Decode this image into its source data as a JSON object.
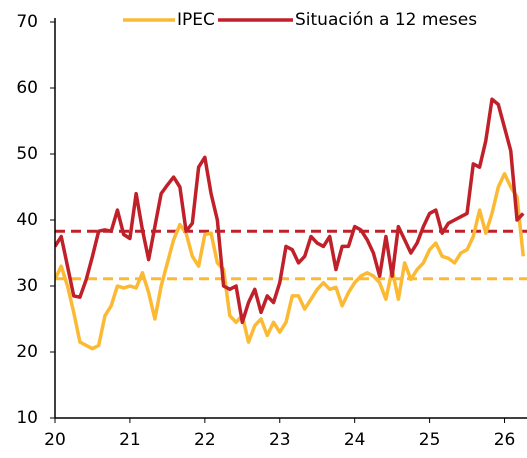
{
  "chart_data": {
    "type": "line",
    "x": [
      20,
      20.083,
      20.167,
      20.25,
      20.333,
      20.417,
      20.5,
      20.583,
      20.667,
      20.75,
      20.833,
      20.917,
      21,
      21.083,
      21.167,
      21.25,
      21.333,
      21.417,
      21.5,
      21.583,
      21.667,
      21.75,
      21.833,
      21.917,
      22,
      22.083,
      22.167,
      22.25,
      22.333,
      22.417,
      22.5,
      22.583,
      22.667,
      22.75,
      22.833,
      22.917,
      23,
      23.083,
      23.167,
      23.25,
      23.333,
      23.417,
      23.5,
      23.583,
      23.667,
      23.75,
      23.833,
      23.917,
      24,
      24.083,
      24.167,
      24.25,
      24.333,
      24.417,
      24.5,
      24.583,
      24.667,
      24.75,
      24.833,
      24.917,
      25,
      25.083,
      25.167,
      25.25,
      25.333,
      25.417,
      25.5,
      25.583,
      25.667,
      25.75,
      25.833,
      25.917,
      26,
      26.083,
      26.167,
      26.25
    ],
    "series": [
      {
        "name": "IPEC",
        "color": "#fbb934",
        "values": [
          31,
          33,
          30,
          26,
          21.5,
          21,
          20.5,
          21,
          25.5,
          27,
          30,
          29.7,
          30,
          29.7,
          32,
          29,
          25,
          30,
          33.5,
          37,
          39.3,
          38,
          34.5,
          33,
          37.8,
          38,
          33.5,
          32.5,
          25.5,
          24.5,
          25.5,
          21.5,
          24,
          25,
          22.5,
          24.5,
          23,
          24.5,
          28.5,
          28.5,
          26.5,
          28,
          29.5,
          30.5,
          29.5,
          29.8,
          27,
          29,
          30.5,
          31.5,
          32,
          31.5,
          30.5,
          28,
          32.5,
          28,
          33.5,
          31,
          32.5,
          33.5,
          35.5,
          36.5,
          34.5,
          34.2,
          33.5,
          35,
          35.5,
          37.5,
          41.5,
          38,
          41,
          45,
          47,
          45,
          43.5,
          34.5
        ]
      },
      {
        "name": "Situación a 12 meses",
        "color": "#c0202a",
        "values": [
          36,
          37.5,
          33,
          28.5,
          28.3,
          31,
          34.5,
          38.3,
          38.5,
          38.3,
          41.5,
          37.8,
          37.2,
          44,
          38.5,
          34,
          39,
          44,
          45.3,
          46.5,
          45,
          38.3,
          39.5,
          48,
          49.5,
          44,
          40,
          30,
          29.5,
          30,
          24.5,
          27.5,
          29.5,
          26,
          28.5,
          27.5,
          30.5,
          36,
          35.5,
          33.5,
          34.5,
          37.5,
          36.5,
          36,
          37.5,
          32.5,
          36,
          36,
          39,
          38.5,
          37,
          35,
          31.5,
          37.5,
          31.5,
          39,
          37,
          35,
          36.5,
          39,
          41,
          41.5,
          38,
          39.5,
          40,
          40.5,
          41,
          48.5,
          48,
          52,
          58.3,
          57.5,
          54,
          50.5,
          40,
          41
        ]
      }
    ],
    "hlines": [
      {
        "value": 38.3,
        "color": "#c0202a"
      },
      {
        "value": 31.1,
        "color": "#fbb934"
      }
    ],
    "xlim": [
      20,
      26.3
    ],
    "xticks": [
      20,
      21,
      22,
      23,
      24,
      25,
      26
    ],
    "ylim": [
      10,
      70
    ],
    "yticks": [
      10,
      20,
      30,
      40,
      50,
      60,
      70
    ],
    "grid": false,
    "legend": "top"
  }
}
